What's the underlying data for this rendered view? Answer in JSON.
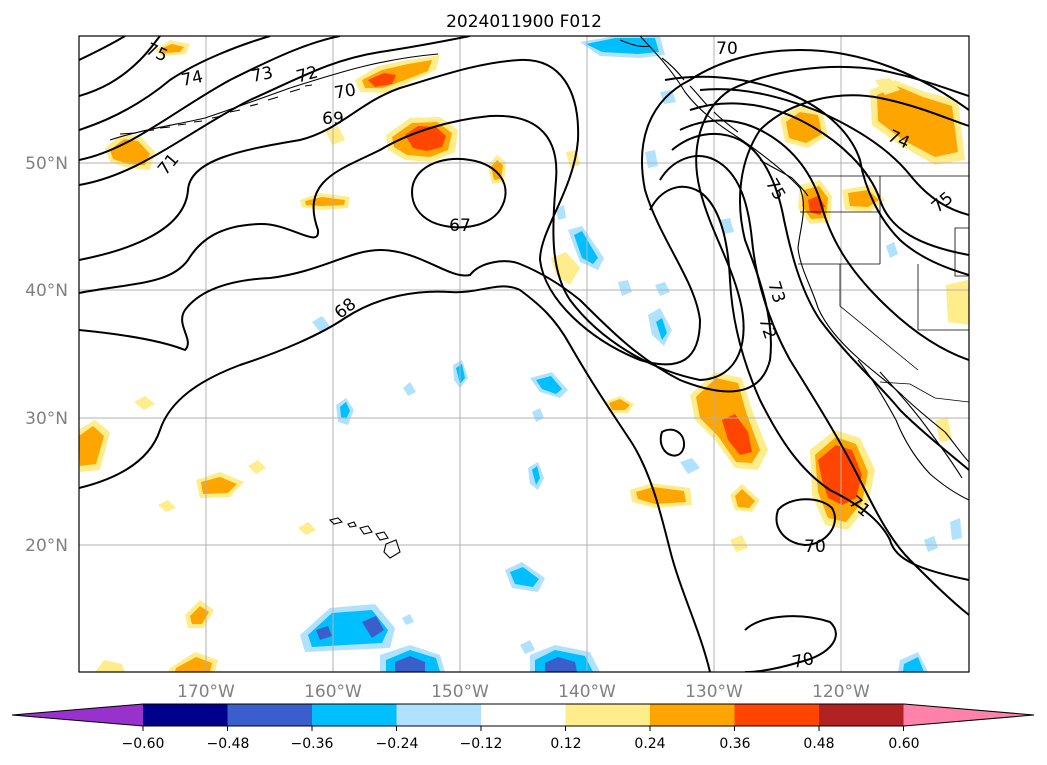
{
  "title": "2024011900 F012",
  "map": {
    "projection": "plate-carree",
    "extent": {
      "lon_min": -180,
      "lon_max": -110,
      "lat_min": 10,
      "lat_max": 60
    },
    "gridlines": true,
    "lat_labels": [
      "50°N",
      "40°N",
      "30°N",
      "20°N"
    ],
    "lon_labels": [
      "170°W",
      "160°W",
      "150°W",
      "140°W",
      "130°W",
      "120°W"
    ],
    "coastlines": true,
    "borders": true
  },
  "colorbar": {
    "orientation": "horizontal",
    "extend": "both",
    "tick_labels": [
      "−0.60",
      "−0.48",
      "−0.36",
      "−0.24",
      "−0.12",
      "0.12",
      "0.24",
      "0.36",
      "0.48",
      "0.60"
    ],
    "colors": [
      "#9932cc",
      "#00008b",
      "#3a5fcd",
      "#00bfff",
      "#b0e2ff",
      "#ffffff",
      "#ffec8b",
      "#ffa500",
      "#ff4500",
      "#b22222",
      "#ff82ab"
    ]
  },
  "contours": {
    "color": "#000000",
    "labels": [
      "75",
      "74",
      "73",
      "72",
      "70",
      "69",
      "71",
      "67",
      "68",
      "70",
      "73",
      "72",
      "74",
      "75",
      "71",
      "70",
      "70",
      "75"
    ]
  }
}
